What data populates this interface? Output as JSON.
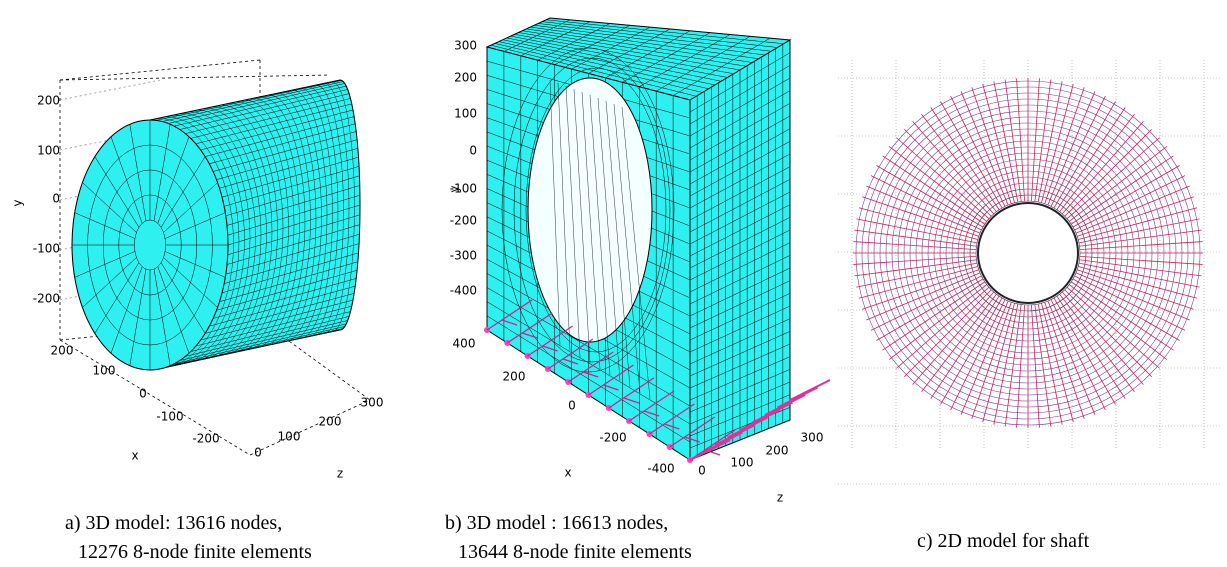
{
  "panels": [
    {
      "y_axis_label": "y",
      "x_axis_label": "x",
      "z_axis_label": "z",
      "y_ticks": [
        200,
        100,
        0,
        -100,
        -200
      ],
      "x_ticks": [
        200,
        100,
        0,
        -100,
        -200
      ],
      "z_ticks": [
        0,
        100,
        200,
        300
      ],
      "caption": [
        "a) 3D model: 13616 nodes,",
        "12276 8-node finite elements"
      ]
    },
    {
      "y_axis_label": "y",
      "x_axis_label": "x",
      "z_axis_label": "z",
      "y_ticks": [
        300,
        200,
        100,
        0,
        -100,
        -200,
        -300,
        -400
      ],
      "x_ticks": [
        400,
        200,
        0,
        -200,
        -400
      ],
      "z_ticks": [
        0,
        100,
        200,
        300
      ],
      "caption": [
        "b) 3D model : 16613 nodes,",
        "13644 8-node finite elements"
      ]
    },
    {
      "caption": [
        "c) 2D model for shaft"
      ]
    }
  ]
}
